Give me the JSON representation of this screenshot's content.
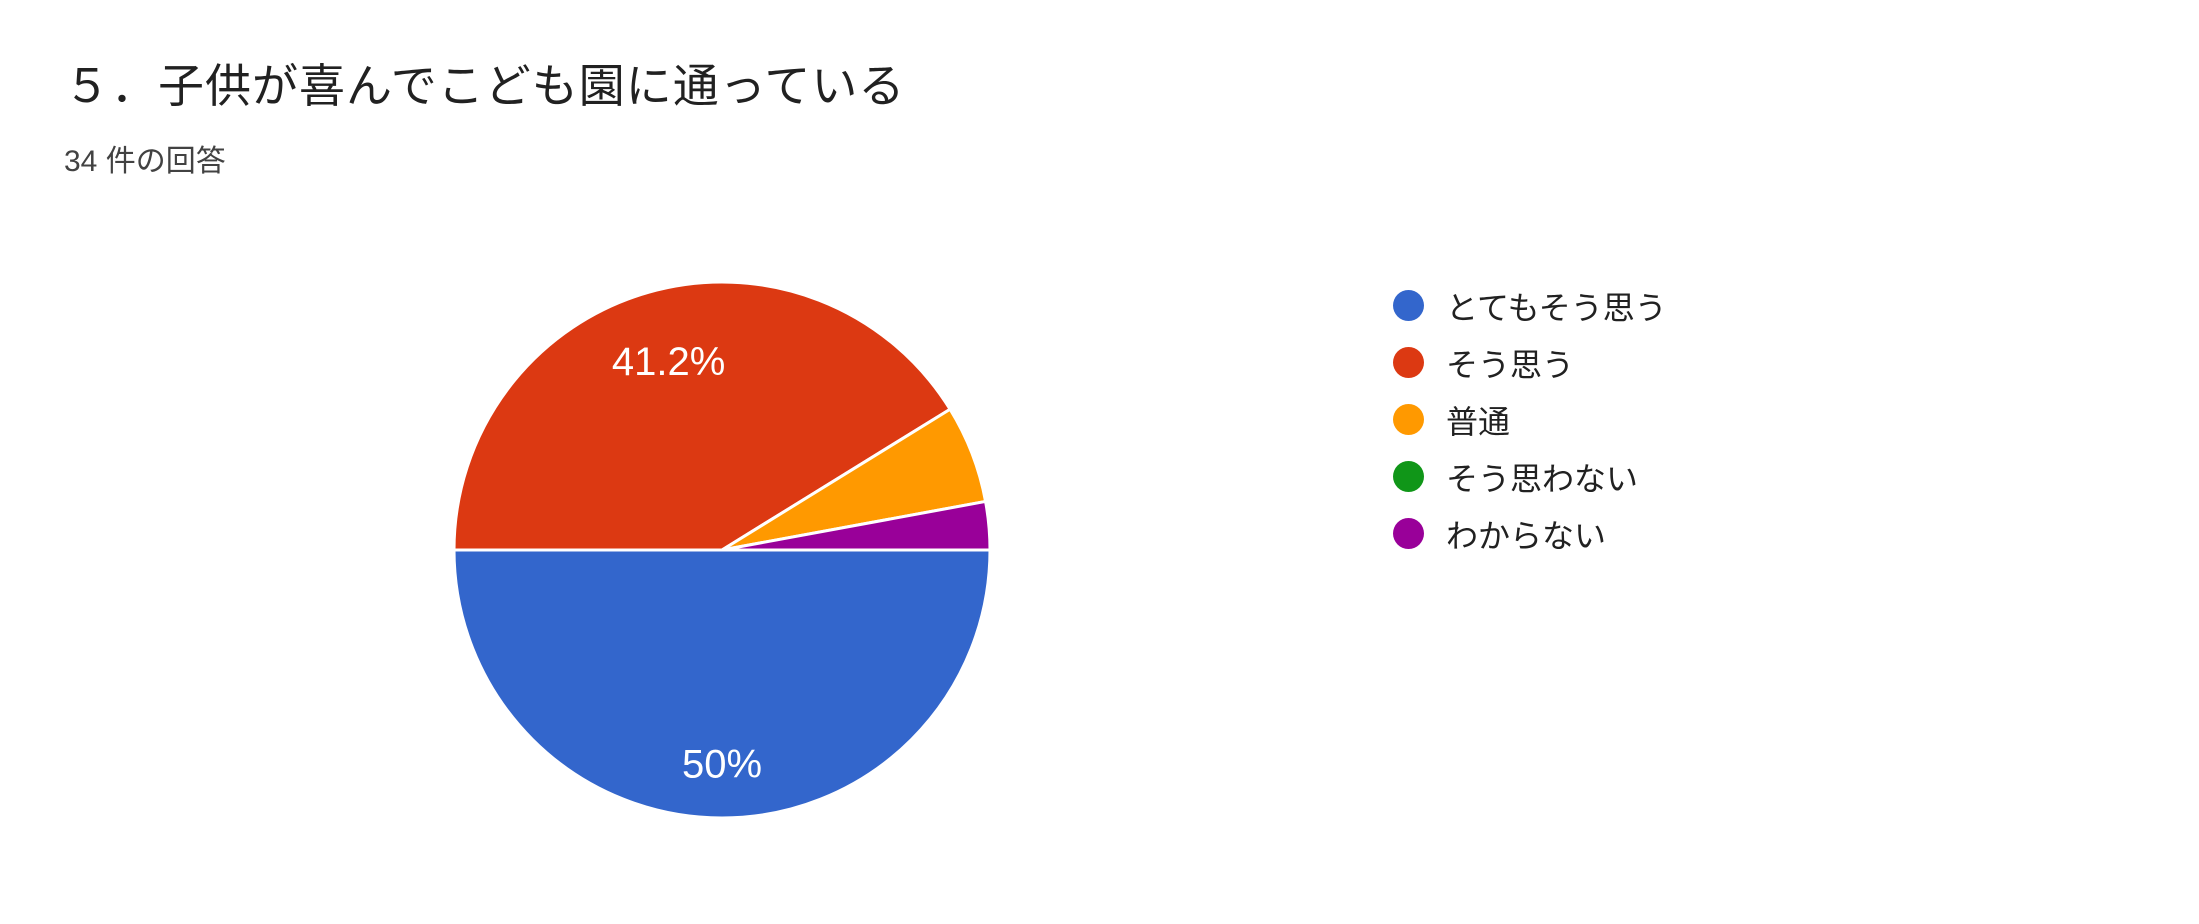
{
  "chart_data": {
    "type": "pie",
    "title": "５．子供が喜んでこども園に通っている",
    "subtitle": "34 件の回答",
    "responses_count": 34,
    "legend_position": "right",
    "start_angle_deg": 0,
    "direction": "clockwise",
    "categories": [
      "とてもそう思う",
      "そう思う",
      "普通",
      "そう思わない",
      "わからない"
    ],
    "values_pct": [
      50,
      41.2,
      5.9,
      0,
      2.9
    ],
    "slices": [
      {
        "name": "とてもそう思う",
        "pct": 50,
        "color": "#3366cc",
        "label": "50%"
      },
      {
        "name": "そう思う",
        "pct": 41.2,
        "color": "#dc3912",
        "label": "41.2%"
      },
      {
        "name": "普通",
        "pct": 5.9,
        "color": "#ff9900",
        "label": null
      },
      {
        "name": "そう思わない",
        "pct": 0,
        "color": "#109618",
        "label": null
      },
      {
        "name": "わからない",
        "pct": 2.9,
        "color": "#990099",
        "label": null
      }
    ],
    "slice_border_color": "#ffffff",
    "label_text_color": "#ffffff",
    "background_color": "#ffffff"
  }
}
